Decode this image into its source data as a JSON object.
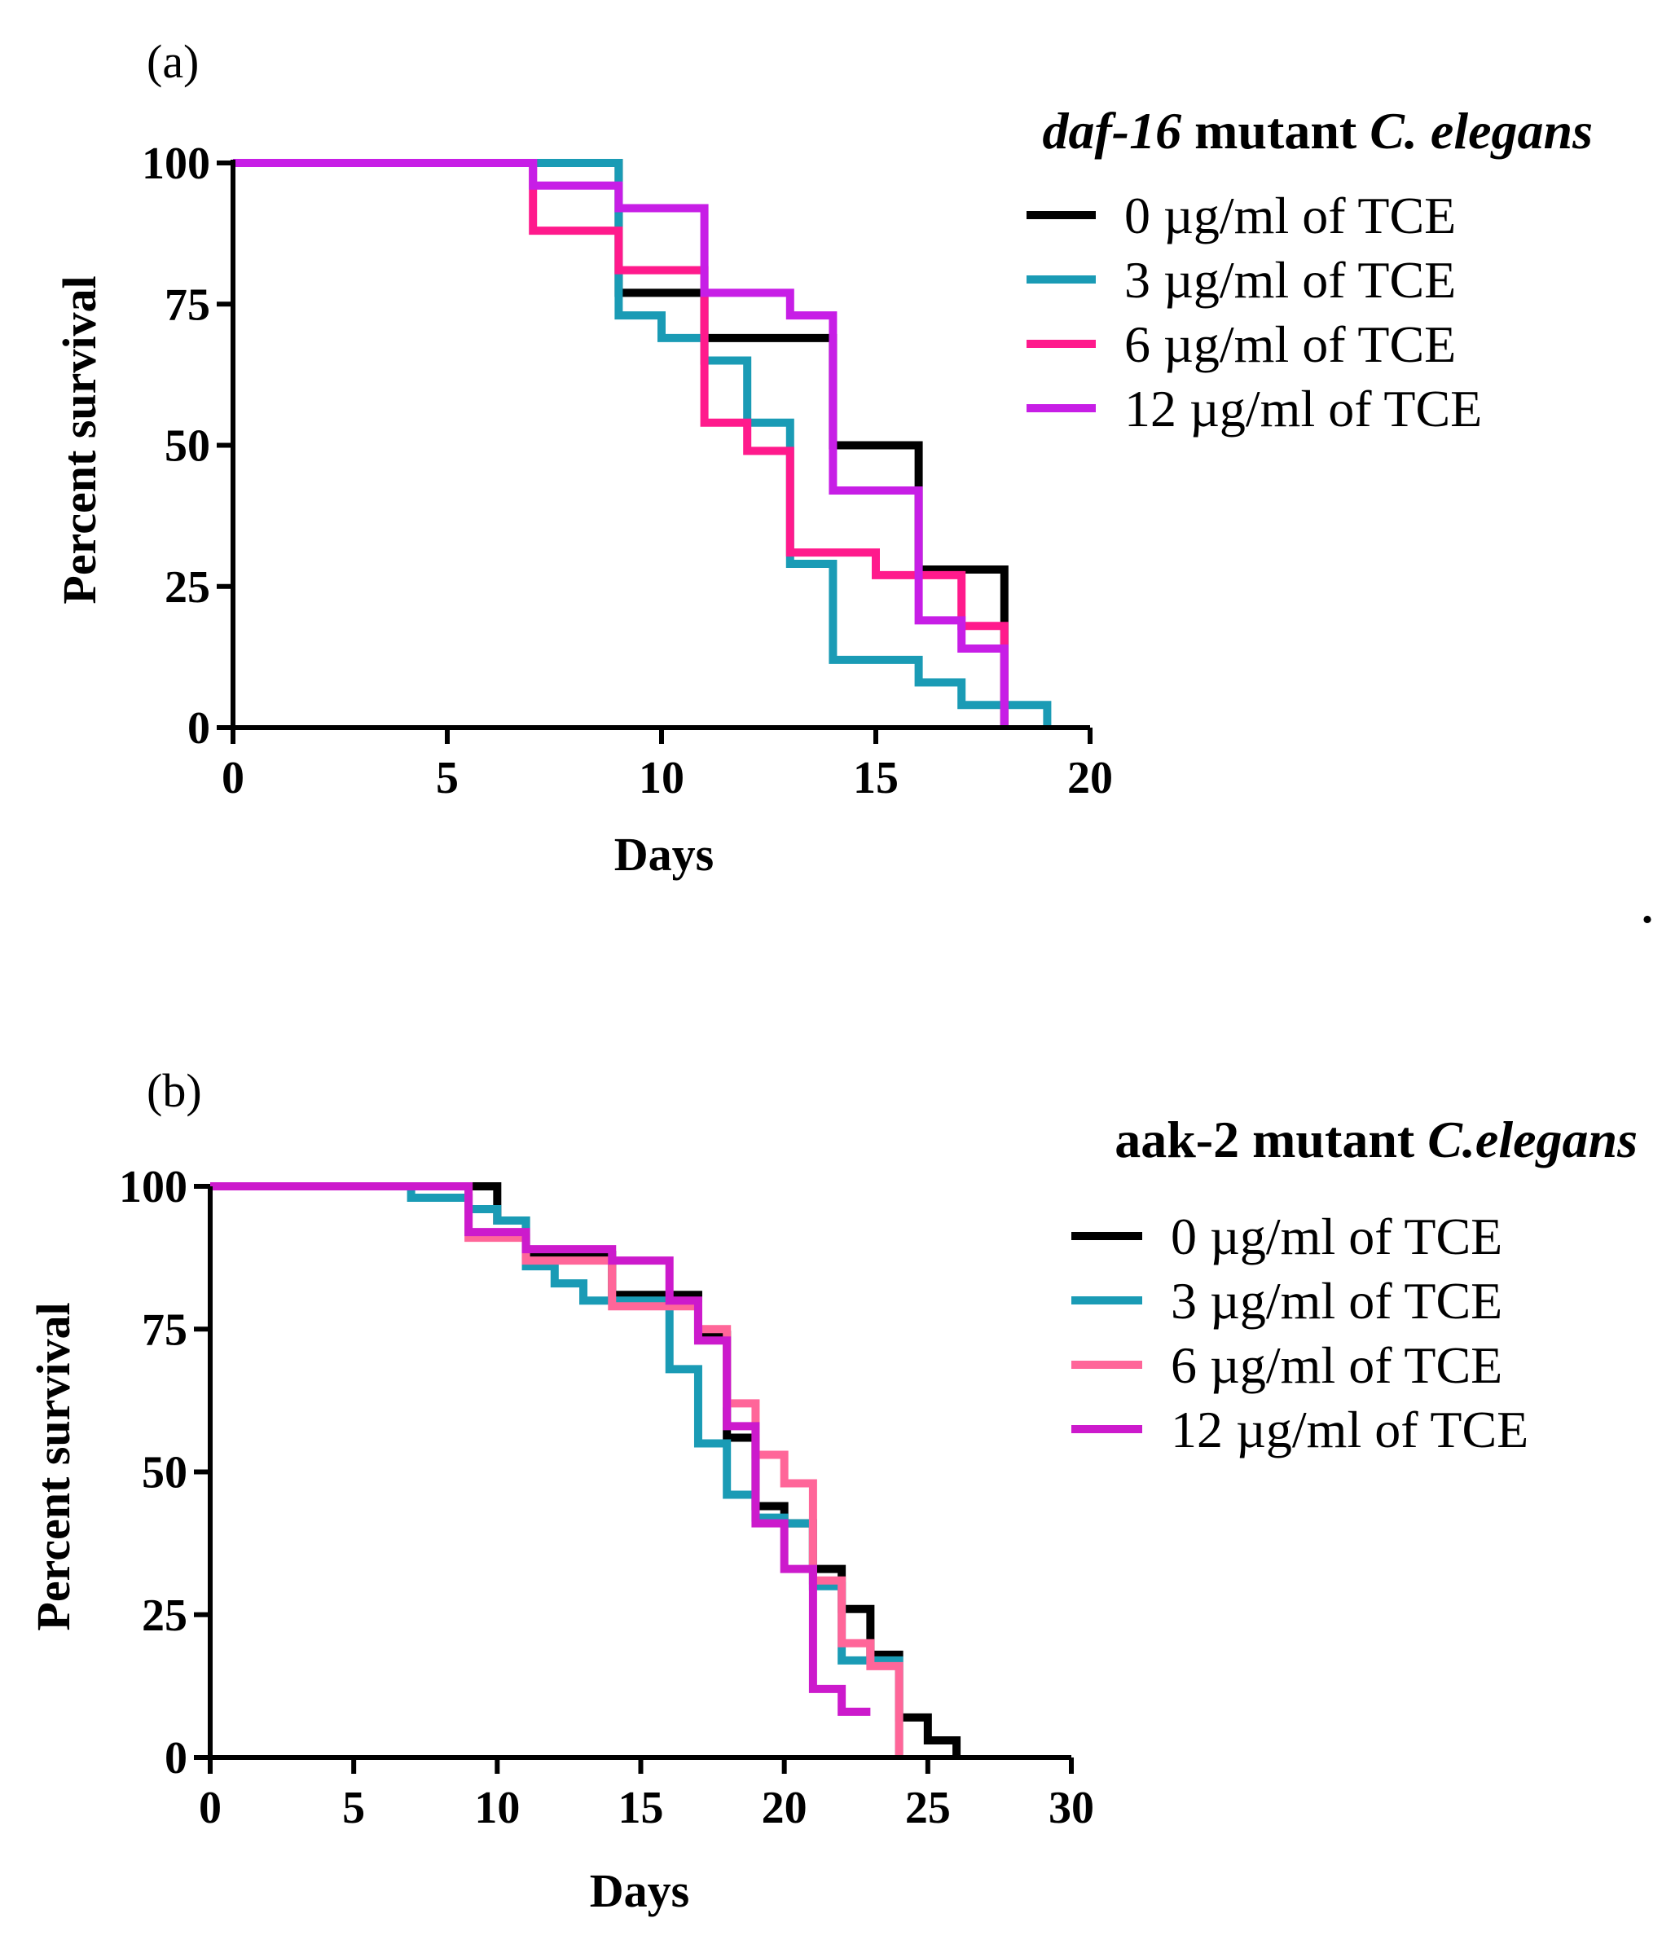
{
  "chart_data": [
    {
      "type": "line",
      "panel_label": "(a)",
      "title_italic": "daf-16",
      "title_bold": " mutant ",
      "title_italic2": "C. elegans",
      "xlabel": "Days",
      "ylabel": "Percent survival",
      "xlim": [
        0,
        20
      ],
      "ylim": [
        0,
        100
      ],
      "xticks": [
        0,
        5,
        10,
        15,
        20
      ],
      "yticks": [
        0,
        25,
        50,
        75,
        100
      ],
      "legend_position": "top-right",
      "series": [
        {
          "name": "0 µg/ml of TCE",
          "color": "#000000",
          "x": [
            0,
            9,
            11,
            14,
            16,
            18
          ],
          "y": [
            100,
            77,
            69,
            50,
            28,
            0
          ]
        },
        {
          "name": "3 µg/ml of TCE",
          "color": "#1a9bb5",
          "x": [
            0,
            9,
            10,
            11,
            12,
            13,
            14,
            16,
            17,
            19
          ],
          "y": [
            100,
            73,
            69,
            65,
            54,
            29,
            12,
            8,
            4,
            0
          ]
        },
        {
          "name": "6 µg/ml of TCE",
          "color": "#ff1a8c",
          "x": [
            0,
            7,
            9,
            11,
            12,
            13,
            15,
            17,
            18
          ],
          "y": [
            100,
            88,
            81,
            54,
            49,
            31,
            27,
            18,
            0
          ]
        },
        {
          "name": "12 µg/ml of TCE",
          "color": "#c71ee6",
          "x": [
            0,
            7,
            9,
            11,
            13,
            14,
            16,
            17,
            18
          ],
          "y": [
            100,
            96,
            92,
            77,
            73,
            42,
            19,
            14,
            0
          ]
        }
      ]
    },
    {
      "type": "line",
      "panel_label": "(b)",
      "title_bold": "aak-2 mutant ",
      "title_italic": "C.elegans",
      "xlabel": "Days",
      "ylabel": "Percent survival",
      "xlim": [
        0,
        30
      ],
      "ylim": [
        0,
        100
      ],
      "xticks": [
        0,
        5,
        10,
        15,
        20,
        25,
        30
      ],
      "yticks": [
        0,
        25,
        50,
        75,
        100
      ],
      "legend_position": "top-right",
      "series": [
        {
          "name": "0 µg/ml of TCE",
          "color": "#000000",
          "x": [
            0,
            10,
            11,
            14,
            17,
            18,
            19,
            20,
            21,
            22,
            23,
            24,
            25,
            26
          ],
          "y": [
            100,
            94,
            88,
            81,
            74,
            56,
            44,
            41,
            33,
            26,
            18,
            7,
            3,
            0
          ]
        },
        {
          "name": "3 µg/ml of TCE",
          "color": "#1a9bb5",
          "x": [
            0,
            7,
            9,
            10,
            11,
            12,
            13,
            16,
            17,
            18,
            19,
            20,
            21,
            22,
            23,
            24
          ],
          "y": [
            100,
            98,
            96,
            94,
            86,
            83,
            80,
            68,
            55,
            46,
            42,
            41,
            30,
            17,
            17,
            0
          ]
        },
        {
          "name": "6 µg/ml of TCE",
          "color": "#ff6699",
          "x": [
            0,
            9,
            11,
            14,
            17,
            18,
            19,
            20,
            21,
            22,
            23,
            24
          ],
          "y": [
            100,
            91,
            87,
            79,
            75,
            62,
            53,
            48,
            31,
            20,
            16,
            0
          ]
        },
        {
          "name": "12 µg/ml of TCE",
          "color": "#cc1acc",
          "x": [
            0,
            9,
            10,
            11,
            14,
            16,
            17,
            18,
            19,
            20,
            21,
            22,
            23
          ],
          "y": [
            100,
            92,
            92,
            89,
            87,
            80,
            73,
            58,
            41,
            33,
            12,
            8,
            8
          ]
        }
      ]
    }
  ],
  "stray_mark": "."
}
